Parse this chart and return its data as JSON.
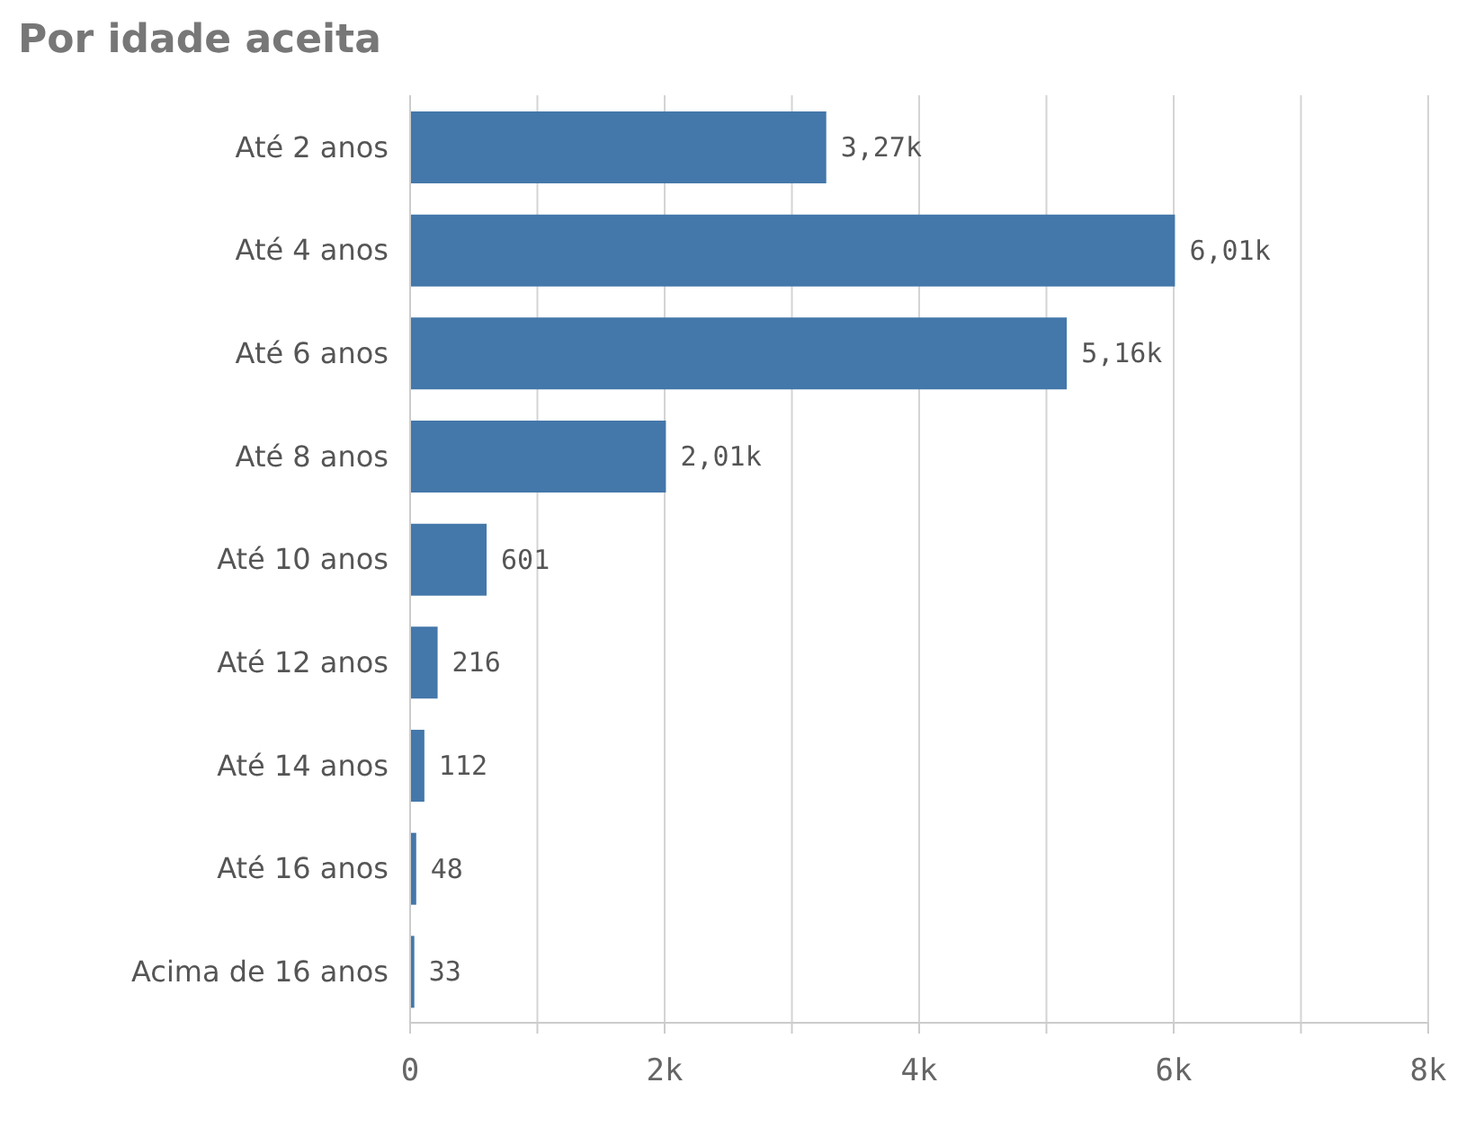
{
  "chart_data": {
    "type": "bar",
    "orientation": "horizontal",
    "title": "Por idade aceita",
    "categories": [
      "Até 2 anos",
      "Até 4 anos",
      "Até 6 anos",
      "Até 8 anos",
      "Até 10 anos",
      "Até 12 anos",
      "Até 14 anos",
      "Até 16 anos",
      "Acima de 16 anos"
    ],
    "values": [
      3270,
      6010,
      5160,
      2010,
      601,
      216,
      112,
      48,
      33
    ],
    "value_labels": [
      "3,27k",
      "6,01k",
      "5,16k",
      "2,01k",
      "601",
      "216",
      "112",
      "48",
      "33"
    ],
    "color": "#4477aa",
    "xlim": [
      0,
      8000
    ],
    "xticks": [
      {
        "value": 0,
        "label": "0"
      },
      {
        "value": 1000,
        "label": null
      },
      {
        "value": 2000,
        "label": "2k"
      },
      {
        "value": 3000,
        "label": null
      },
      {
        "value": 4000,
        "label": "4k"
      },
      {
        "value": 5000,
        "label": null
      },
      {
        "value": 6000,
        "label": "6k"
      },
      {
        "value": 7000,
        "label": null
      },
      {
        "value": 8000,
        "label": "8k"
      }
    ],
    "grid": "x"
  }
}
